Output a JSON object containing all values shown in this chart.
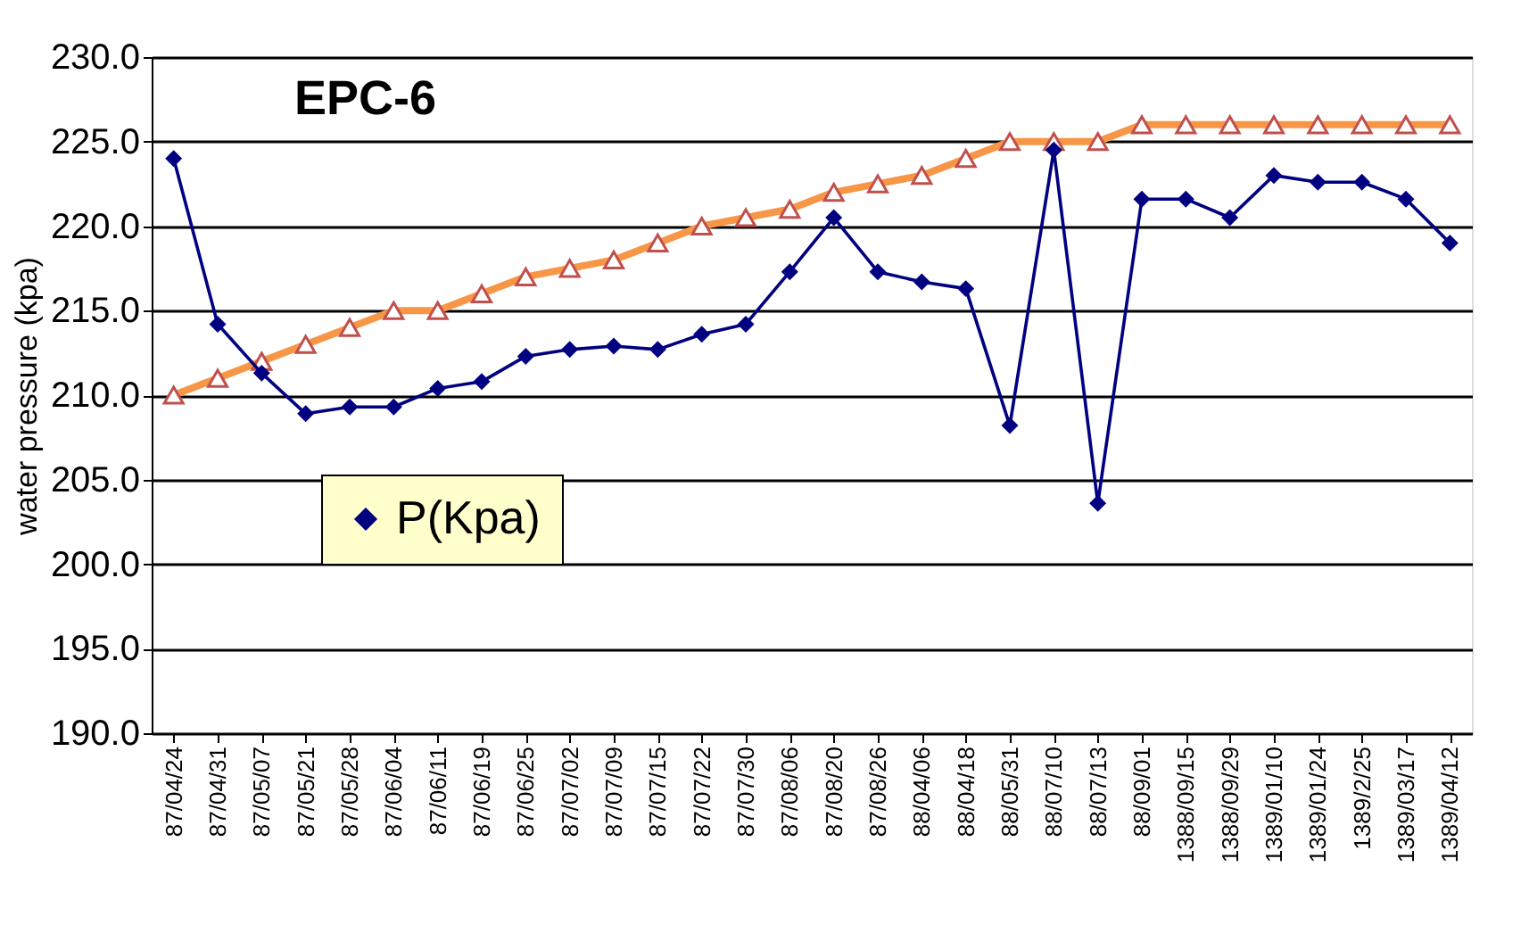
{
  "chart_data": {
    "type": "line",
    "title": "EPC-6",
    "ylabel": "water pressure (kpa)",
    "categories": [
      "87/04/24",
      "87/04/31",
      "87/05/07",
      "87/05/21",
      "87/05/28",
      "87/06/04",
      "87/06/11",
      "87/06/19",
      "87/06/25",
      "87/07/02",
      "87/07/09",
      "87/07/15",
      "87/07/22",
      "87/07/30",
      "87/08/06",
      "87/08/20",
      "87/08/26",
      "88/04/06",
      "88/04/18",
      "88/05/31",
      "88/07/10",
      "88/07/13",
      "88/09/01",
      "1388/09/15",
      "1388/09/29",
      "1389/01/10",
      "1389/01/24",
      "1389/2/25",
      "1389/03/17",
      "1389/04/12"
    ],
    "series": [
      {
        "name": "P(Kpa)",
        "color": "#000080",
        "marker": "diamond",
        "values": [
          224.0,
          214.2,
          211.3,
          208.9,
          209.3,
          209.3,
          210.4,
          210.8,
          212.3,
          212.7,
          212.9,
          212.7,
          213.6,
          214.2,
          217.3,
          220.5,
          217.3,
          216.7,
          216.3,
          208.2,
          224.5,
          203.6,
          221.6,
          221.6,
          220.5,
          223.0,
          222.6,
          222.6,
          221.6,
          219.0
        ]
      },
      {
        "color": "#f79646",
        "marker": "triangle",
        "values": [
          210,
          211,
          212,
          213,
          214,
          215,
          215,
          216,
          217,
          217.5,
          218,
          219,
          220,
          220.5,
          221,
          222,
          222.5,
          223,
          224,
          225,
          225,
          225,
          226,
          226,
          226,
          226,
          226,
          226,
          226,
          226
        ]
      }
    ],
    "ylim": [
      190,
      230
    ],
    "yticks": [
      {
        "value": 190,
        "label": "190.0"
      },
      {
        "value": 195,
        "label": "195.0"
      },
      {
        "value": 200,
        "label": "200.0"
      },
      {
        "value": 205,
        "label": "205.0"
      },
      {
        "value": 210,
        "label": "210.0"
      },
      {
        "value": 215,
        "label": "215.0"
      },
      {
        "value": 220,
        "label": "220.0"
      },
      {
        "value": 225,
        "label": "225.0"
      },
      {
        "value": 230,
        "label": "230.0"
      }
    ],
    "grid": "y",
    "legend": "bottom left",
    "line_style": "solid"
  }
}
